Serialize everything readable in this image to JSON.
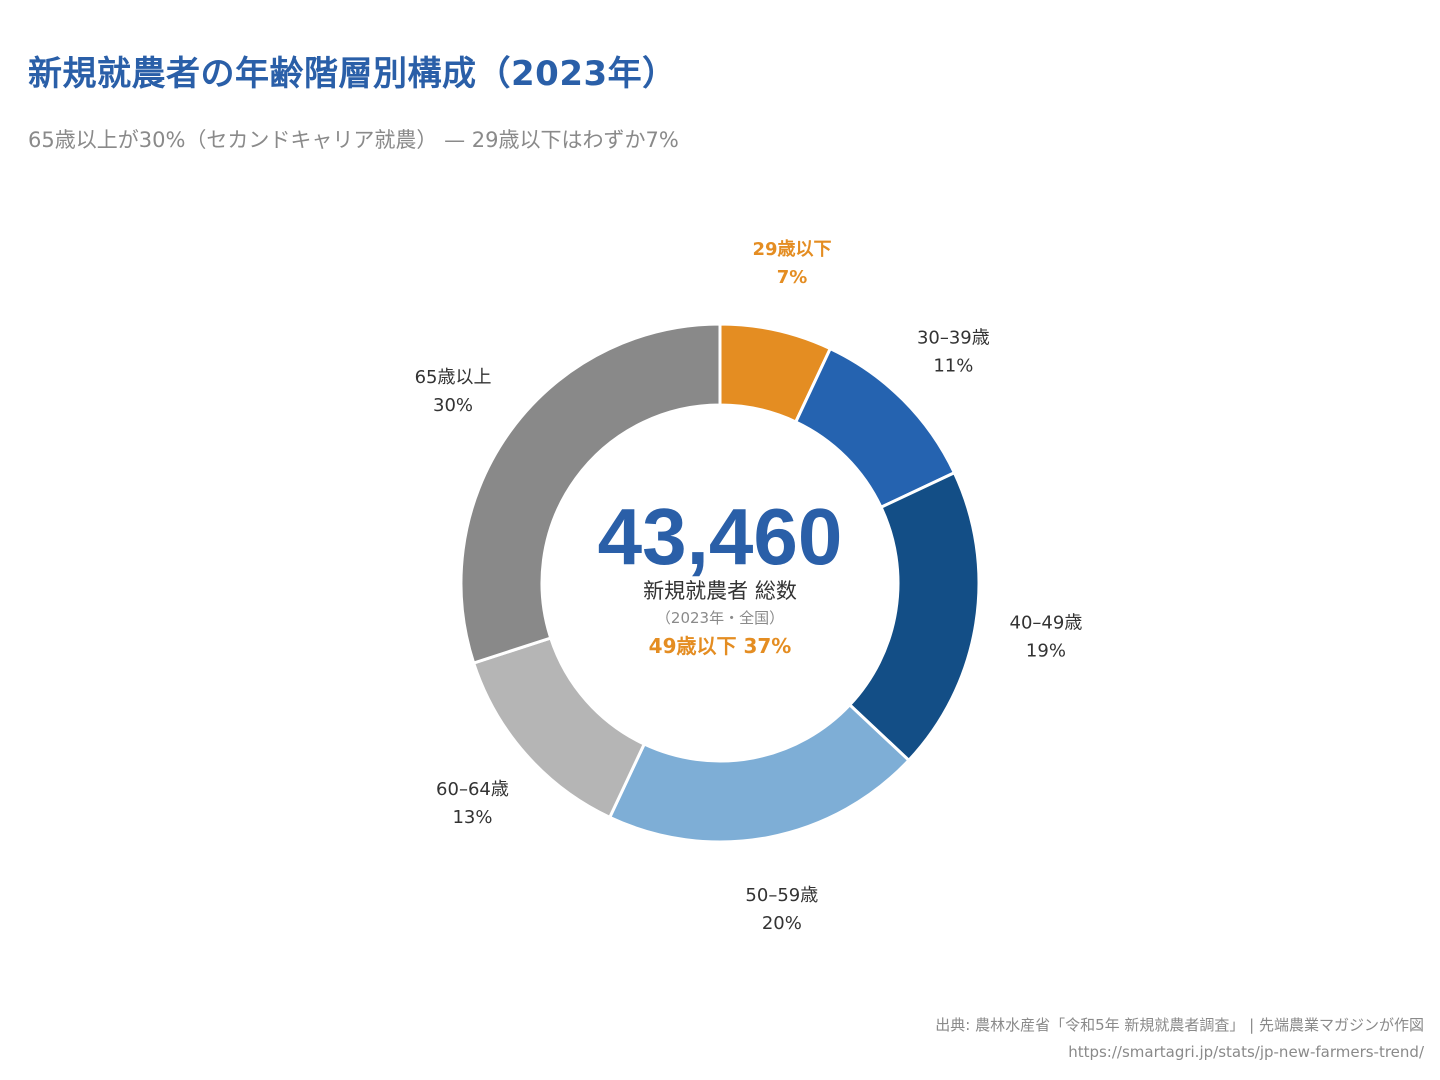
{
  "title": "新規就農者の年齢階層別構成（2023年）",
  "subtitle": "65歳以上が30%（セカンドキャリア就農） — 29歳以下はわずか7%",
  "center": {
    "total": "43,460",
    "label": "新規就農者 総数",
    "sublabel": "（2023年・全国）",
    "highlight": "49歳以下 37%"
  },
  "source": {
    "line1": "出典: 農林水産省「令和5年 新規就農者調査」 | 先端農業マガジンが作図",
    "line2": "https://smartagri.jp/stats/jp-new-farmers-trend/"
  },
  "colors": {
    "title": "#2a5fa8",
    "subtitle": "#8a8a8a",
    "highlight": "#e48d22",
    "label": "#333333",
    "separator": "#ffffff"
  },
  "chart_data": {
    "type": "pie",
    "style": "donut",
    "total": 43460,
    "unit": "%",
    "start": "top, clockwise",
    "categories": [
      "29歳以下",
      "30–39歳",
      "40–49歳",
      "50–59歳",
      "60–64歳",
      "65歳以上"
    ],
    "values": [
      7,
      11,
      19,
      20,
      13,
      30
    ],
    "labels": [
      "7%",
      "11%",
      "19%",
      "20%",
      "13%",
      "30%"
    ],
    "slice_colors": [
      "#e48d22",
      "#2563b0",
      "#134e86",
      "#7eaed6",
      "#b5b5b5",
      "#898989"
    ],
    "label_colors": [
      "#e48d22",
      "#333333",
      "#333333",
      "#333333",
      "#333333",
      "#333333"
    ],
    "highlighted": [
      "29歳以下"
    ]
  }
}
